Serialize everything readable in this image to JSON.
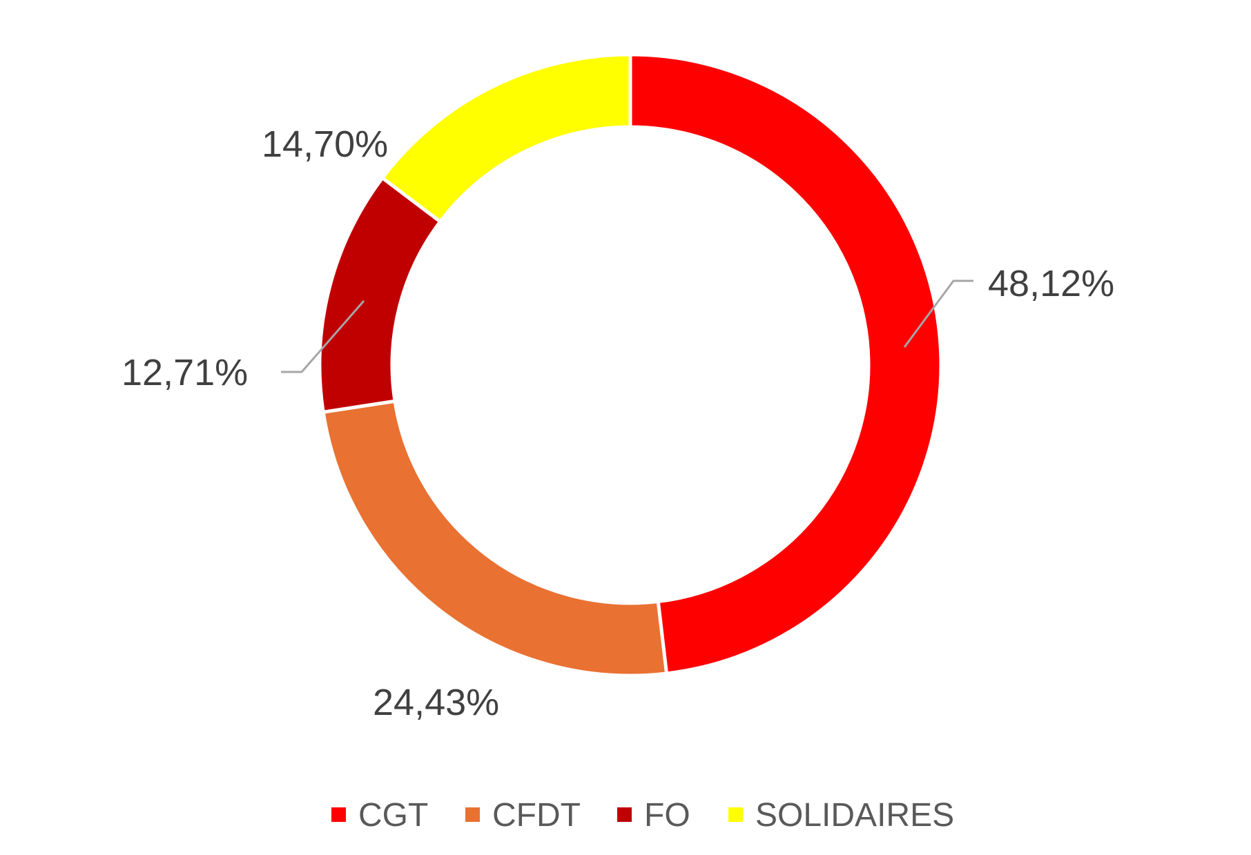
{
  "chart_data": {
    "type": "pie",
    "variant": "doughnut",
    "title": "",
    "categories": [
      "CGT",
      "CFDT",
      "FO",
      "SOLIDAIRES"
    ],
    "values": [
      48.12,
      24.43,
      12.71,
      14.7
    ],
    "labels": [
      "48,12%",
      "24,43%",
      "12,71%",
      "14,70%"
    ],
    "colors": [
      "#FF0000",
      "#E97132",
      "#C00000",
      "#FFFF00"
    ],
    "legend_position": "bottom"
  }
}
